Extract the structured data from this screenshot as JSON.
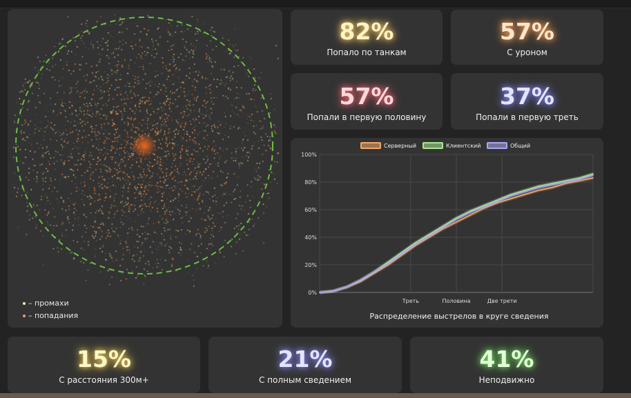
{
  "scatter": {
    "legend": [
      {
        "label": "– промахи",
        "color": "#f0f0b0"
      },
      {
        "label": "– попадания",
        "color": "#f0a060"
      }
    ]
  },
  "stats": {
    "tanks": {
      "value": "82%",
      "label": "Попало по танкам",
      "color": "#fff2c8",
      "glow": "#e8c060"
    },
    "damage": {
      "value": "57%",
      "label": "С уроном",
      "color": "#ffe6cc",
      "glow": "#e89550"
    },
    "half": {
      "value": "57%",
      "label": "Попали в первую половину",
      "color": "#ffd8d8",
      "glow": "#e06070"
    },
    "third": {
      "value": "37%",
      "label": "Попали в первую треть",
      "color": "#e4e4ff",
      "glow": "#7d7de8"
    },
    "range": {
      "value": "15%",
      "label": "С расстояния 300м+",
      "color": "#fff6c8",
      "glow": "#e0c050"
    },
    "aimed": {
      "value": "21%",
      "label": "С полным сведением",
      "color": "#e4e4ff",
      "glow": "#8080e8"
    },
    "still": {
      "value": "41%",
      "label": "Неподвижно",
      "color": "#e2ffd6",
      "glow": "#70d060"
    }
  },
  "chart_data": {
    "type": "line",
    "title": "Распределение выстрелов в круге сведения",
    "xlabel": "",
    "ylabel": "",
    "ylim": [
      0,
      100
    ],
    "y_ticks": [
      "0%",
      "20%",
      "40%",
      "60%",
      "80%",
      "100%"
    ],
    "x_ticks": [
      {
        "label": "Треть",
        "x": 0.333
      },
      {
        "label": "Половина",
        "x": 0.5
      },
      {
        "label": "Две трети",
        "x": 0.667
      }
    ],
    "xlim": [
      0,
      1
    ],
    "grid": true,
    "legend_position": "top",
    "series": [
      {
        "name": "Серверный",
        "color": "#f0a868",
        "x": [
          0,
          0.05,
          0.1,
          0.15,
          0.2,
          0.25,
          0.3,
          0.35,
          0.4,
          0.45,
          0.5,
          0.55,
          0.6,
          0.65,
          0.7,
          0.75,
          0.8,
          0.85,
          0.9,
          0.95,
          1.0
        ],
        "values": [
          0,
          1,
          4,
          8,
          14,
          20,
          27,
          34,
          40,
          46,
          51,
          56,
          61,
          65,
          68,
          71,
          74,
          76,
          79,
          81,
          83
        ]
      },
      {
        "name": "Клиентский",
        "color": "#a8e890",
        "x": [
          0,
          0.05,
          0.1,
          0.15,
          0.2,
          0.25,
          0.3,
          0.35,
          0.4,
          0.45,
          0.5,
          0.55,
          0.6,
          0.65,
          0.7,
          0.75,
          0.8,
          0.85,
          0.9,
          0.95,
          1.0
        ],
        "values": [
          0,
          1,
          4,
          9,
          15,
          22,
          29,
          36,
          42,
          48,
          54,
          59,
          63,
          67,
          71,
          74,
          77,
          79,
          81,
          83,
          86
        ]
      },
      {
        "name": "Общий",
        "color": "#a8a8f0",
        "x": [
          0,
          0.05,
          0.1,
          0.15,
          0.2,
          0.25,
          0.3,
          0.35,
          0.4,
          0.45,
          0.5,
          0.55,
          0.6,
          0.65,
          0.7,
          0.75,
          0.8,
          0.85,
          0.9,
          0.95,
          1.0
        ],
        "values": [
          0,
          1,
          4,
          9,
          15,
          21,
          28,
          35,
          41,
          47,
          53,
          58,
          62,
          66,
          70,
          73,
          76,
          78,
          80,
          82,
          85
        ]
      }
    ]
  }
}
